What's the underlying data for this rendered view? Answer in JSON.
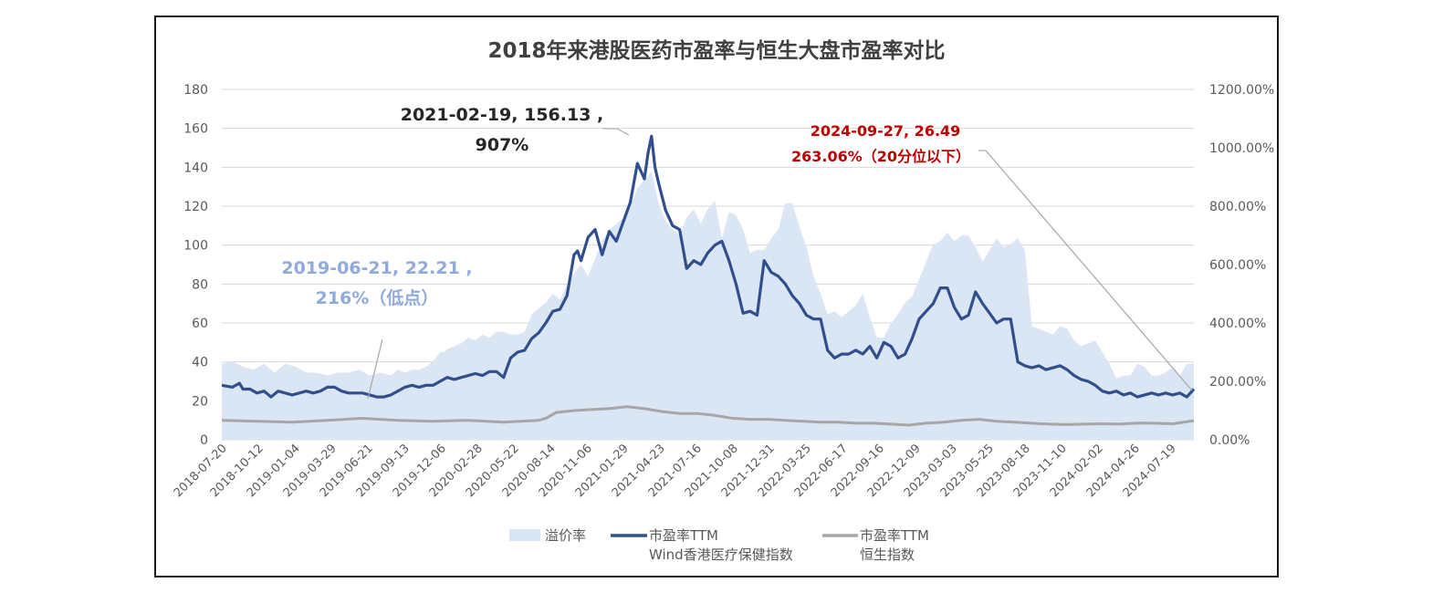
{
  "chart_data": {
    "type": "line",
    "title": "2018年来港股医药市盈率与恒生大盘市盈率对比",
    "ylim_left": [
      0,
      180
    ],
    "yticks_left": [
      "0",
      "20",
      "40",
      "60",
      "80",
      "100",
      "120",
      "140",
      "160",
      "180"
    ],
    "ylim_right": [
      0,
      12
    ],
    "yticks_right": [
      "0.00%",
      "200.00%",
      "400.00%",
      "600.00%",
      "800.00%",
      "1000.00%",
      "1200.00%"
    ],
    "grid": true,
    "legend_position": "bottom",
    "x_tick_labels": [
      "2018-07-20",
      "2018-10-12",
      "2019-01-04",
      "2019-03-29",
      "2019-06-21",
      "2019-09-13",
      "2019-12-06",
      "2020-02-28",
      "2020-05-22",
      "2020-08-14",
      "2020-11-06",
      "2021-01-29",
      "2021-04-23",
      "2021-07-16",
      "2021-10-08",
      "2021-12-31",
      "2022-03-25",
      "2022-06-17",
      "2022-09-16",
      "2022-12-09",
      "2023-03-03",
      "2023-05-25",
      "2023-08-18",
      "2023-11-10",
      "2024-02-02",
      "2024-04-26",
      "2024-07-19"
    ],
    "series": [
      {
        "name": "溢价率",
        "axis": "right",
        "style": "area",
        "x": [
          0,
          1,
          2,
          3,
          4,
          5,
          6,
          7,
          8,
          9,
          10,
          11,
          12,
          13,
          14,
          15,
          16,
          17,
          18,
          19,
          20,
          21,
          22,
          23,
          24,
          25,
          26,
          27,
          28,
          29,
          30,
          31,
          32,
          33,
          34,
          35,
          36,
          37,
          38,
          39,
          40,
          41,
          42,
          43,
          44,
          45,
          46,
          47,
          48,
          49,
          50,
          51,
          52,
          53,
          54,
          55,
          56,
          57,
          58,
          59,
          60,
          61,
          62,
          63,
          64,
          65,
          66,
          67,
          68,
          69,
          70,
          71,
          72,
          73,
          74,
          75,
          76,
          77,
          78,
          79,
          80,
          81,
          82,
          83,
          84,
          85,
          86,
          87,
          88,
          89,
          90,
          91,
          92,
          93,
          94,
          95,
          96,
          97,
          98,
          99,
          100,
          101,
          102,
          103,
          104,
          105,
          106,
          107,
          108,
          109,
          110,
          111,
          112,
          113,
          114,
          115,
          116,
          117,
          118,
          119,
          120,
          121,
          122,
          123,
          124,
          125,
          126,
          127,
          128,
          129,
          130,
          131,
          132,
          133,
          134,
          135,
          136,
          137,
          138,
          139,
          140,
          141,
          142,
          143,
          144,
          145,
          146,
          147,
          148,
          149,
          150,
          151,
          152,
          153,
          154,
          155,
          156,
          157,
          158,
          159,
          160,
          161,
          162,
          163,
          164,
          165,
          166,
          167,
          168,
          169,
          170,
          171,
          172,
          173,
          174,
          175,
          176,
          177,
          178,
          179,
          180,
          181,
          182,
          183,
          184,
          185,
          186,
          187,
          188,
          189,
          190,
          191,
          192,
          193,
          194,
          195,
          196,
          197,
          198,
          199,
          200,
          201,
          202,
          203,
          204,
          205,
          206,
          207,
          208,
          209,
          210,
          211,
          212,
          213,
          214,
          215,
          216,
          217,
          218,
          219,
          220,
          221,
          222,
          223,
          224,
          225,
          226,
          227,
          228,
          229,
          230,
          231,
          232,
          233,
          234,
          235,
          236,
          237,
          238,
          239,
          240,
          241,
          242,
          243,
          244,
          245,
          246,
          247,
          248,
          249,
          250,
          251,
          252,
          253,
          254,
          255,
          256,
          257,
          258,
          259,
          260,
          261,
          262,
          263,
          264,
          265,
          266,
          267,
          268,
          269,
          270,
          271,
          272,
          273,
          274,
          275,
          276,
          277,
          278,
          279,
          280,
          281,
          282,
          283,
          284,
          285,
          286,
          287,
          288,
          289,
          290,
          291,
          292,
          293,
          294,
          295,
          296,
          297,
          298,
          299,
          300,
          301,
          302,
          303,
          304,
          305,
          306,
          307,
          308,
          309,
          310,
          311,
          312,
          313,
          314,
          315,
          316,
          317,
          318,
          319,
          320,
          321,
          322,
          323,
          324,
          325,
          326,
          327,
          328,
          329,
          330,
          331,
          332,
          333,
          334,
          335,
          336,
          337,
          338,
          339,
          340,
          341,
          342,
          343,
          344,
          345,
          346,
          347,
          348,
          349,
          350,
          351,
          352,
          353,
          354,
          355,
          356,
          357,
          358,
          359,
          360,
          361,
          362,
          363,
          364,
          365,
          366,
          367,
          368,
          369,
          370,
          371,
          372,
          373,
          374,
          375,
          376,
          377,
          378,
          379,
          380,
          381,
          382,
          383,
          384,
          385,
          386,
          387,
          388,
          389,
          390,
          391,
          392,
          393,
          394,
          395,
          396,
          397,
          398,
          399,
          400,
          401,
          402,
          403,
          404,
          405,
          406,
          407,
          408,
          409,
          410,
          411,
          412,
          413,
          414,
          415,
          416,
          417,
          418,
          419,
          420,
          421,
          422,
          423,
          424,
          425,
          426,
          427,
          428,
          429,
          430,
          431,
          432,
          433,
          434,
          435,
          436,
          437,
          438,
          439,
          440,
          441,
          442,
          443,
          444,
          445,
          446,
          447,
          448,
          449,
          450,
          451,
          452,
          453,
          454,
          455,
          456,
          457,
          458,
          459,
          460,
          461,
          462,
          463,
          464,
          465,
          466,
          467,
          468,
          469,
          470,
          471,
          472,
          473,
          474,
          475,
          476,
          477,
          478,
          479,
          480,
          481,
          482,
          483,
          484,
          485,
          486,
          487,
          488,
          489,
          490,
          491,
          492,
          493,
          494,
          495,
          496,
          497,
          498,
          499,
          500,
          501,
          502,
          503,
          504,
          505,
          506,
          507,
          508,
          509,
          510,
          511,
          512,
          513,
          514,
          515,
          516,
          517,
          518,
          519,
          520,
          521,
          522,
          523,
          524,
          525,
          526,
          527,
          528,
          529,
          530,
          531,
          532,
          533,
          534,
          535,
          536,
          537,
          538,
          539,
          540,
          541,
          542,
          543,
          544,
          545,
          546,
          547,
          548,
          549,
          550,
          551,
          552,
          553,
          554,
          555,
          556,
          557,
          558,
          559,
          560,
          561,
          562,
          563,
          564,
          565,
          566,
          567,
          568,
          569,
          570,
          571,
          572,
          573,
          574,
          575,
          576,
          577,
          578,
          579,
          580,
          581,
          582,
          583,
          584,
          585,
          586,
          587,
          588,
          589,
          590,
          591,
          592,
          593,
          594,
          595,
          596,
          597,
          598,
          599,
          600,
          601,
          602,
          603,
          604,
          605,
          606,
          607,
          608,
          609,
          610,
          611,
          612,
          613,
          614,
          615,
          616,
          617,
          618,
          619,
          620,
          621,
          622,
          623,
          624,
          625,
          626,
          627,
          628,
          629,
          630,
          631,
          632,
          633,
          634,
          635,
          636,
          637,
          638,
          639,
          640,
          641,
          642,
          643,
          644,
          645,
          646,
          647,
          648,
          649,
          650,
          651,
          652,
          653,
          654,
          655,
          656,
          657,
          658,
          659,
          660,
          661,
          662,
          663,
          664,
          665,
          666,
          667,
          668,
          669,
          670,
          671,
          672,
          673,
          674,
          675,
          676,
          677,
          678,
          679,
          680,
          681,
          682,
          683,
          684,
          685,
          686,
          687,
          688,
          689,
          690,
          691,
          692,
          693,
          694,
          695,
          696,
          697,
          698,
          699,
          700,
          701,
          702,
          703,
          704,
          705,
          706,
          707,
          708,
          709,
          710,
          711,
          712,
          713,
          714,
          715,
          716,
          717,
          718,
          719,
          720,
          721,
          722,
          723,
          724,
          725,
          726,
          727,
          728,
          729,
          730,
          731,
          732,
          733,
          734,
          735,
          736,
          737,
          738,
          739,
          740,
          741,
          742,
          743,
          744,
          745,
          746,
          747,
          748,
          749,
          750,
          751,
          752,
          753,
          754,
          755,
          756,
          757,
          758,
          759,
          760,
          761,
          762,
          763,
          764,
          765,
          766,
          767,
          768,
          769,
          770,
          771,
          772,
          773,
          774,
          775,
          776,
          777,
          778,
          779,
          780,
          781,
          782,
          783,
          784,
          785,
          786,
          787,
          788,
          789,
          790,
          791,
          792,
          793,
          794,
          795,
          796,
          797,
          798,
          799,
          800,
          801,
          802,
          803,
          804,
          805,
          806,
          807,
          808,
          809,
          810,
          811,
          812,
          813,
          814,
          815,
          816,
          817,
          818,
          819,
          820,
          821,
          822,
          823,
          824,
          825,
          826,
          827,
          828,
          829,
          830,
          831,
          832,
          833,
          834,
          835,
          836,
          837,
          838,
          839,
          840,
          841,
          842,
          843,
          844,
          845,
          846,
          847,
          848,
          849,
          850,
          851,
          852,
          853,
          854,
          855,
          856,
          857,
          858,
          859,
          860,
          861,
          862,
          863,
          864,
          865,
          866,
          867,
          868,
          869,
          870,
          871,
          872,
          873,
          874,
          875,
          876,
          877,
          878,
          879,
          880,
          881,
          882,
          883,
          884,
          885,
          886,
          887,
          888,
          889,
          890,
          891,
          892,
          893,
          894,
          895,
          896,
          897,
          898,
          899,
          900,
          901,
          902,
          903,
          904,
          905,
          906,
          907,
          908,
          909,
          910,
          911,
          912,
          913,
          914,
          915,
          916,
          917,
          918,
          919,
          920,
          921,
          922,
          923,
          924,
          925,
          926,
          927,
          928,
          929,
          930,
          931,
          932,
          933,
          934,
          935,
          936,
          937,
          938,
          939,
          940,
          941,
          942,
          943,
          944,
          945,
          946,
          947,
          948,
          949,
          950,
          951,
          952,
          953,
          954,
          955,
          956,
          957,
          958,
          959,
          960,
          961,
          962,
          963,
          964,
          965,
          966,
          967,
          968,
          969,
          970,
          971,
          972,
          973,
          974,
          975,
          976,
          977,
          978,
          979,
          980,
          981,
          982,
          983,
          984,
          985,
          986,
          987,
          988,
          989,
          990,
          991,
          992,
          993,
          994,
          995,
          996,
          997,
          998,
          999,
          1000,
          1001,
          1002,
          1003,
          1004,
          1005,
          1006,
          1007,
          1008,
          1009,
          1010,
          1011,
          1012,
          1013,
          1014,
          1015,
          1016,
          1017,
          1018,
          1019,
          1020,
          1021,
          1022,
          1023,
          1024,
          1025,
          1026,
          1027,
          1028,
          1029,
          1030,
          1031,
          1032,
          1033,
          1034,
          1035,
          1036,
          1037,
          1038,
          1039,
          1040,
          1041,
          1042,
          1043,
          1044,
          1045,
          1046,
          1047,
          1048,
          1049,
          1050,
          1051,
          1052,
          1053,
          1054,
          1055,
          1056,
          1057,
          1058,
          1059,
          1060,
          1061,
          1062,
          1063,
          1064,
          1065,
          1066,
          1067
        ],
        "_note": "x is an index placeholder replaced by script; see x_points"
      }
    ]
  }
}
